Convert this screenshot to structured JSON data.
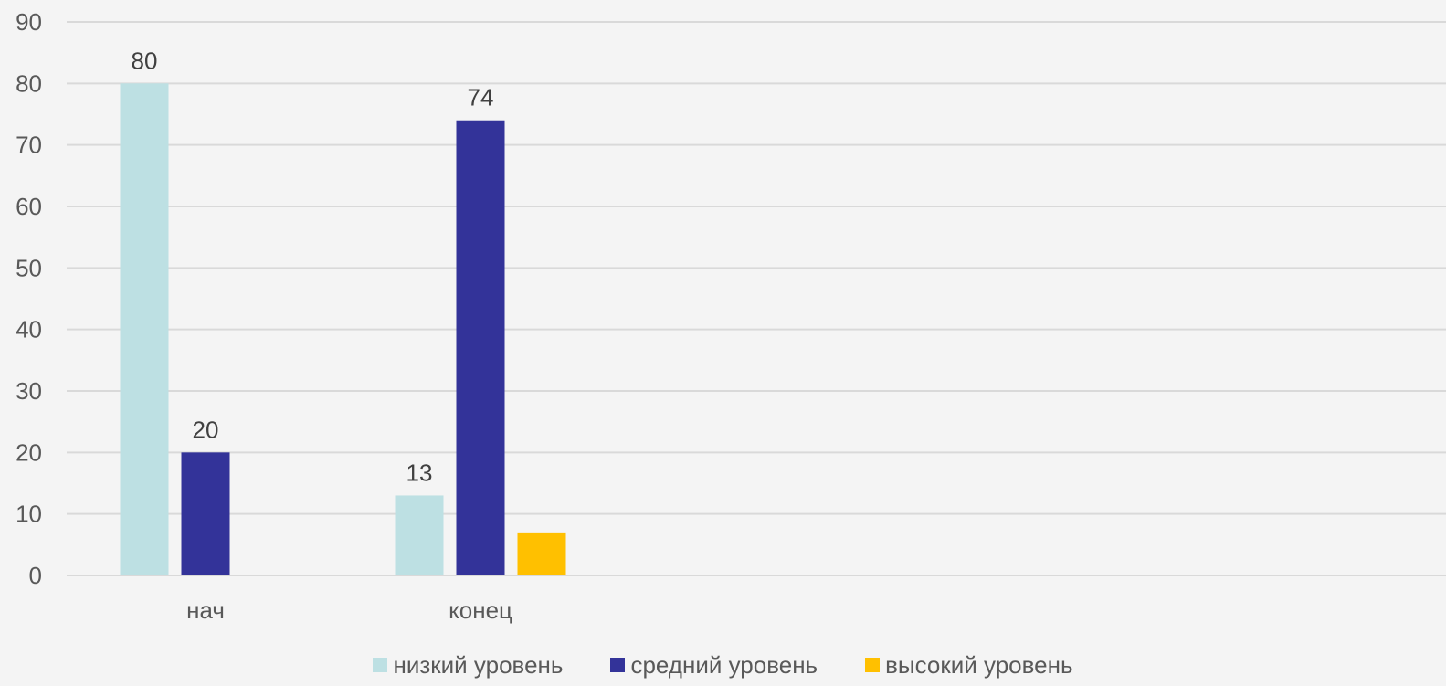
{
  "chart_data": {
    "type": "bar",
    "categories": [
      "нач",
      "конец"
    ],
    "series": [
      {
        "name": "низкий уровень",
        "values": [
          80,
          13
        ],
        "color": "#bde0e3"
      },
      {
        "name": "средний уровень",
        "values": [
          20,
          74
        ],
        "color": "#333399"
      },
      {
        "name": "высокий уровень",
        "values": [
          0,
          7
        ],
        "color": "#ffc000"
      }
    ],
    "data_labels": [
      [
        80,
        13
      ],
      [
        20,
        74
      ],
      [
        null,
        null
      ]
    ],
    "ylim": [
      0,
      90
    ],
    "yticks": [
      0,
      10,
      20,
      30,
      40,
      50,
      60,
      70,
      80,
      90
    ],
    "grid": true,
    "legend_position": "bottom"
  }
}
